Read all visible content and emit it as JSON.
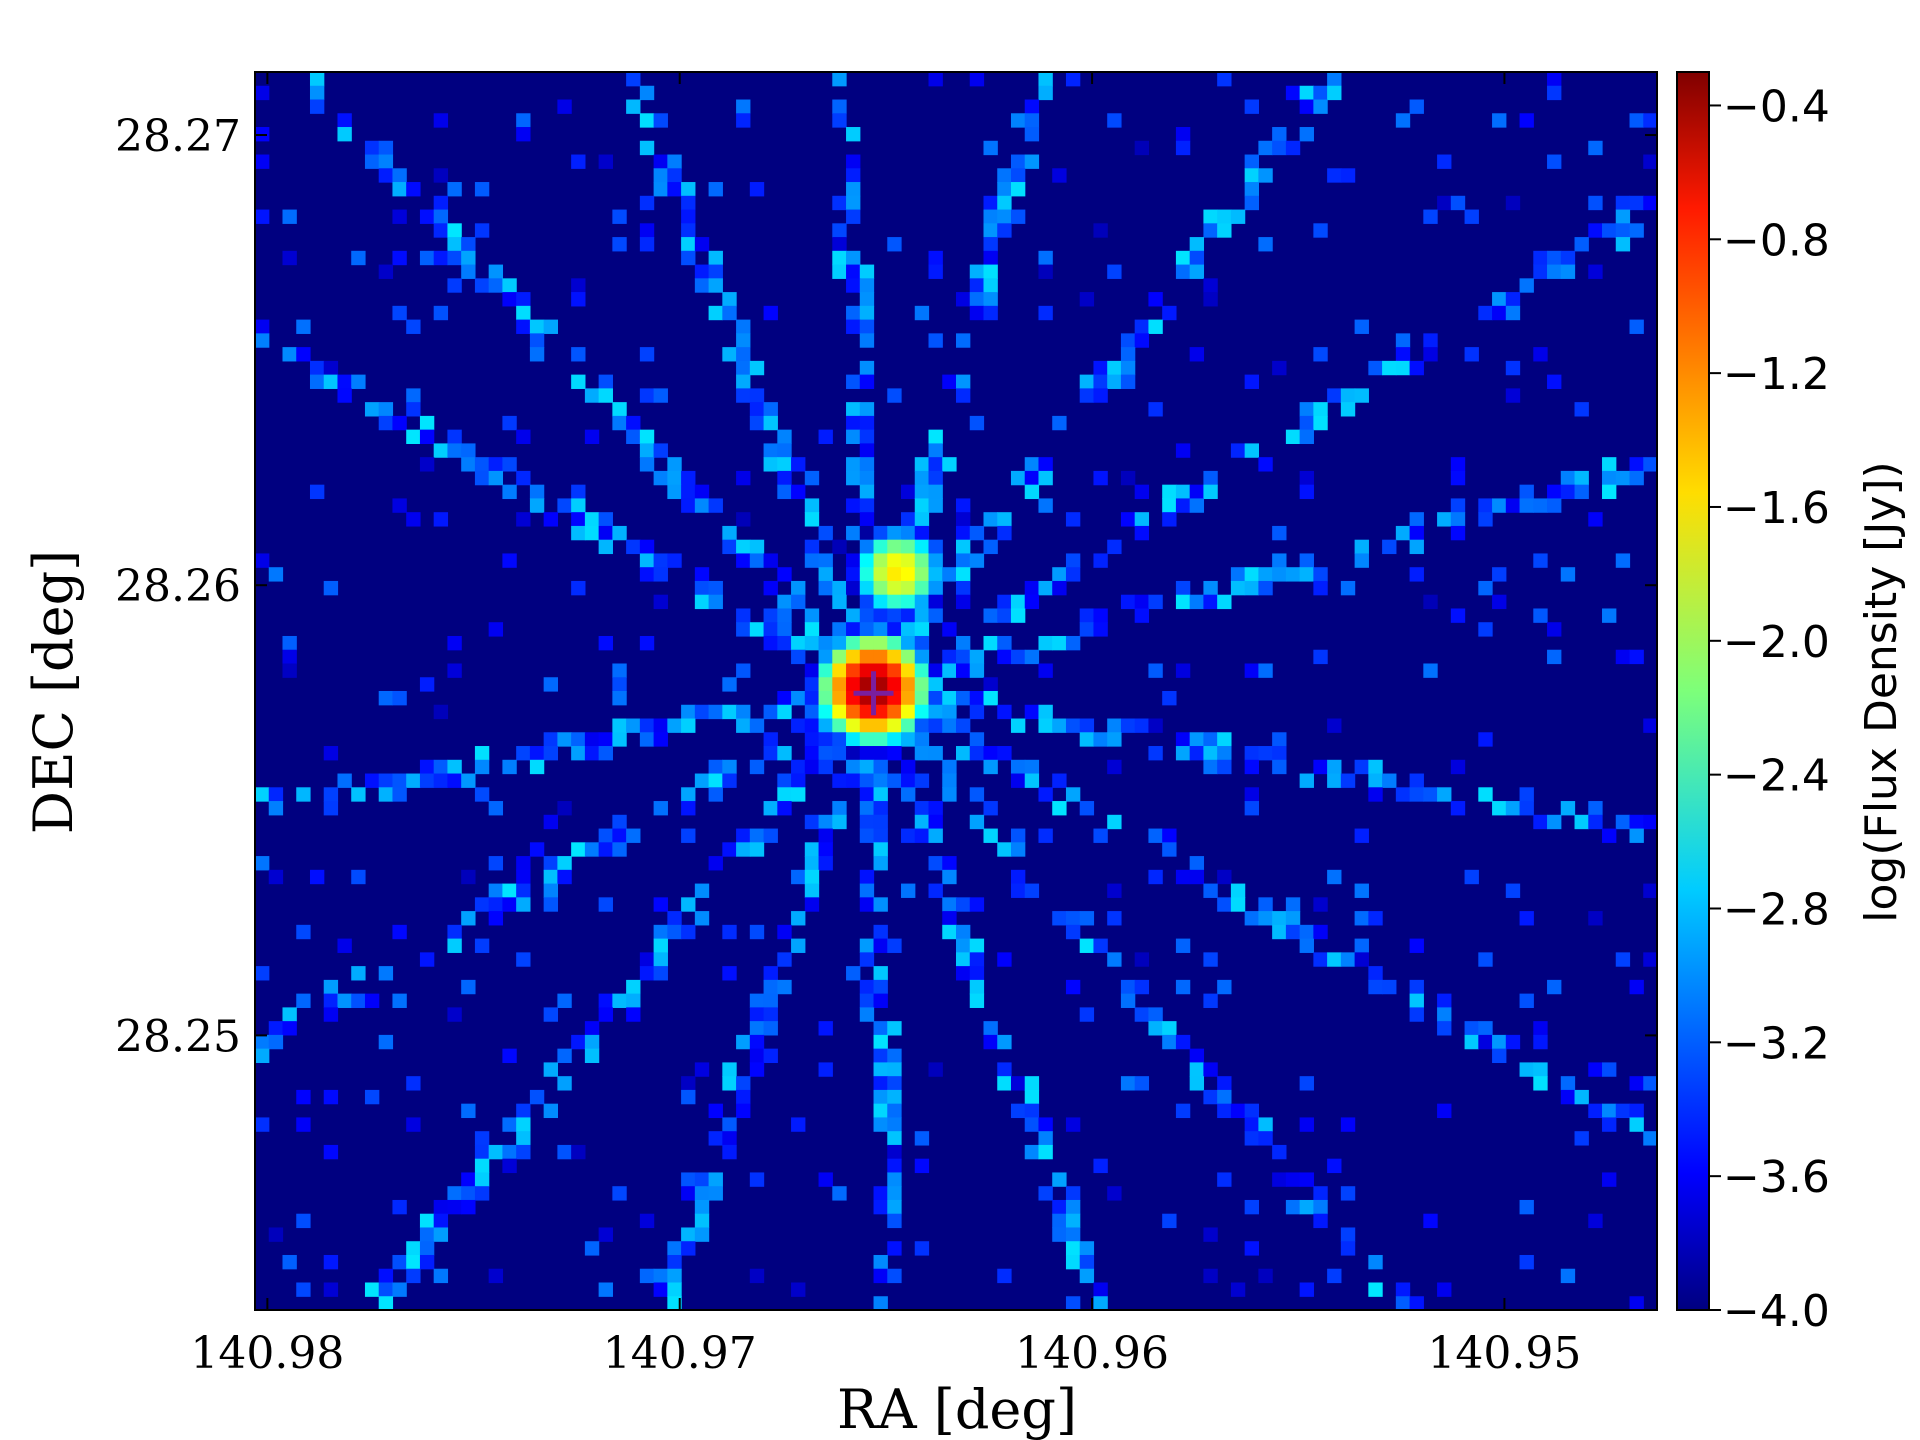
{
  "chart_data": {
    "type": "heatmap",
    "title": "",
    "xlabel": "RA [deg]",
    "ylabel": "DEC [deg]",
    "x_ticks": [
      140.98,
      140.97,
      140.96,
      140.95
    ],
    "x_tick_labels": [
      "140.98",
      "140.97",
      "140.96",
      "140.95"
    ],
    "y_ticks": [
      28.27,
      28.26,
      28.25
    ],
    "y_tick_labels": [
      "28.27",
      "28.26",
      "28.25"
    ],
    "xlim": [
      140.9803,
      140.9463
    ],
    "ylim": [
      28.2439,
      28.2714
    ],
    "colorbar": {
      "label": "log(Flux Density [Jy])",
      "range": [
        -4.0,
        -0.3
      ],
      "ticks": [
        -0.4,
        -0.8,
        -1.2,
        -1.6,
        -2.0,
        -2.4,
        -2.8,
        -3.2,
        -3.6,
        -4.0
      ],
      "tick_labels": [
        "−0.4",
        "−0.8",
        "−1.2",
        "−1.6",
        "−2.0",
        "−2.4",
        "−2.8",
        "−3.2",
        "−3.6",
        "−4.0"
      ],
      "colormap": "jet"
    },
    "sources": [
      {
        "ra": 140.9653,
        "dec": 28.2577,
        "peak": -0.4
      },
      {
        "ra": 140.9647,
        "dec": 28.2603,
        "peak": -1.6
      }
    ],
    "marker": {
      "symbol": "+",
      "ra": 140.9653,
      "dec": 28.2576,
      "color": "#7a1f9e"
    },
    "background_level": -4.0,
    "grid": false
  }
}
